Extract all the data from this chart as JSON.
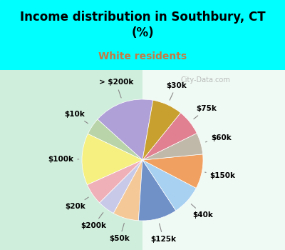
{
  "title": "Income distribution in Southbury, CT\n(%)",
  "subtitle": "White residents",
  "title_color": "#000000",
  "subtitle_color": "#c87941",
  "bg_top": "#00ffff",
  "bg_bottom": "#e8f5e0",
  "labels": [
    "> $200k",
    "$10k",
    "$100k",
    "$20k",
    "$200k",
    "$50k",
    "$125k",
    "$40k",
    "$150k",
    "$60k",
    "$75k",
    "$30k"
  ],
  "values": [
    14,
    4,
    12,
    5,
    4,
    6,
    9,
    7,
    8,
    5,
    6,
    7
  ],
  "colors": [
    "#b0a0d8",
    "#b8d4a8",
    "#f5f080",
    "#f0b0b8",
    "#c8c8e8",
    "#f5c898",
    "#7090c8",
    "#a8d0f0",
    "#f0a060",
    "#c0b8a8",
    "#e08090",
    "#c8a030"
  ],
  "wedge_linewidth": 0.5,
  "wedge_edgecolor": "#ffffff",
  "label_fontsize": 7.5,
  "label_fontweight": "bold",
  "startangle": 80
}
